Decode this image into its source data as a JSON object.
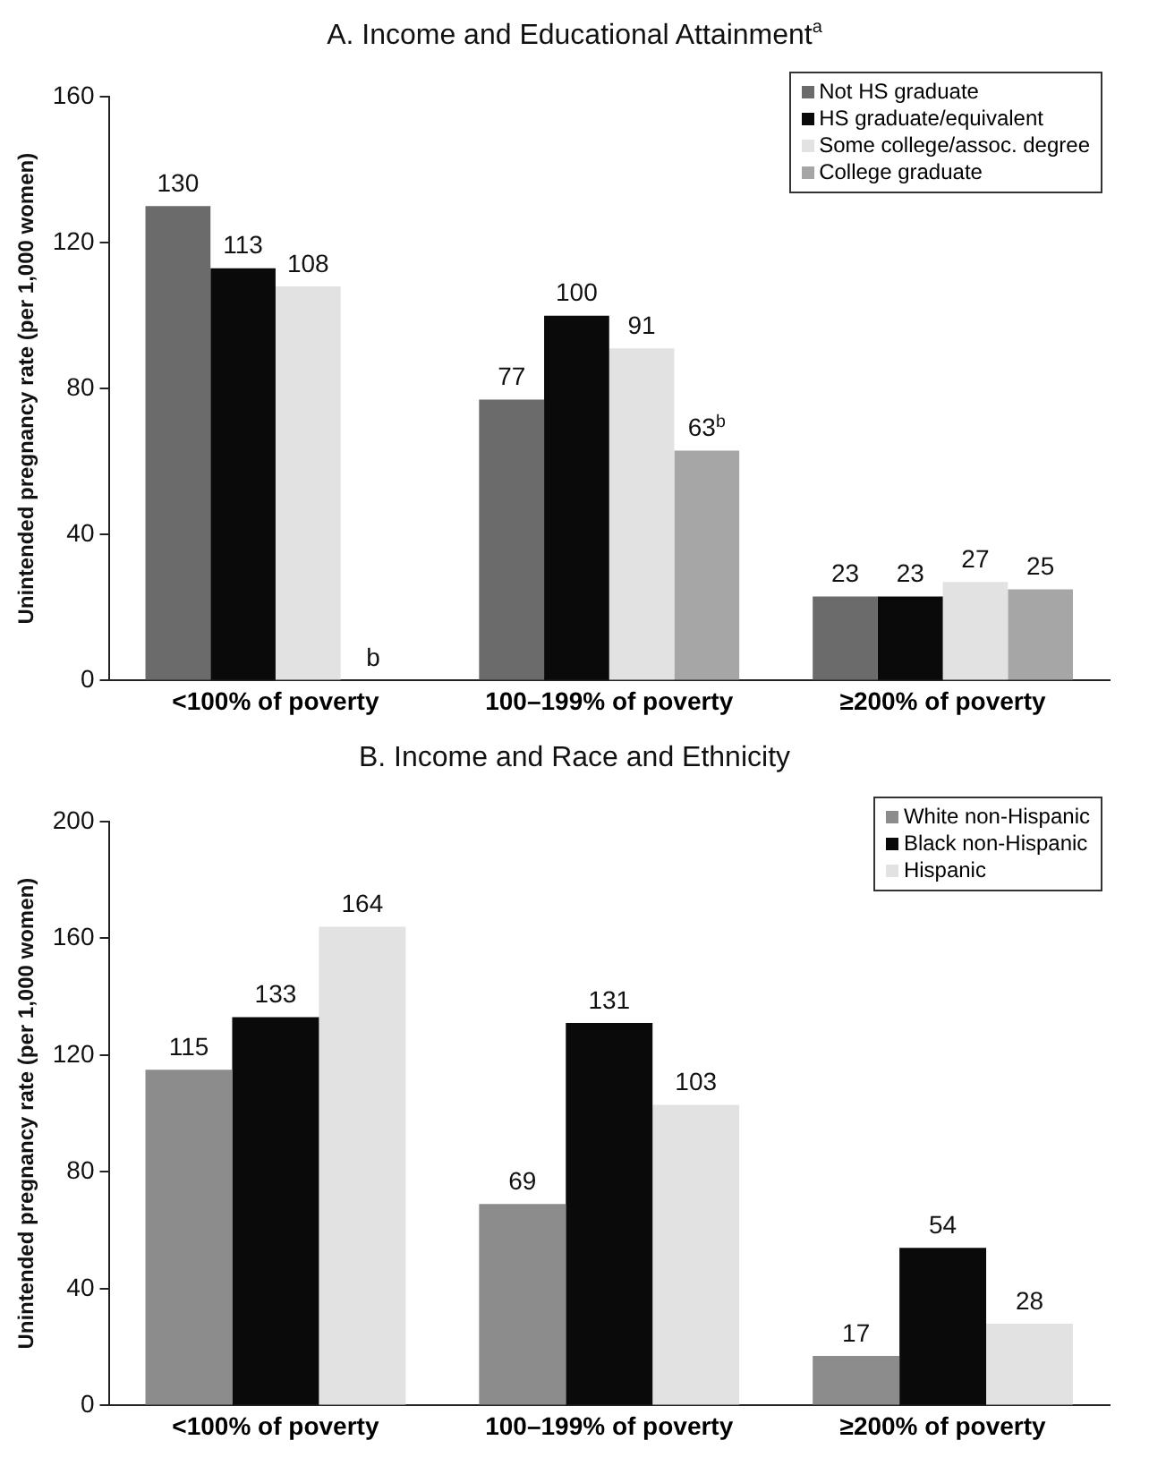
{
  "chart_data": [
    {
      "type": "bar",
      "title": "A. Income and Educational Attainment$^{a}$",
      "ylabel": "Unintended pregnancy rate (per 1,000 women)",
      "categories": [
        "<100% of poverty",
        "100–199% of poverty",
        "≥200% of poverty"
      ],
      "ylim": [
        0,
        160
      ],
      "yticks": [
        0,
        40,
        80,
        120,
        160
      ],
      "grid": false,
      "legend": "top right",
      "series": [
        {
          "name": "Not HS graduate",
          "color": "#6b6b6b",
          "values": [
            130,
            77,
            23
          ],
          "value_labels": [
            "130",
            "77",
            "23"
          ]
        },
        {
          "name": "HS graduate/equivalent",
          "color": "#0a0a0a",
          "values": [
            113,
            100,
            23
          ],
          "value_labels": [
            "113",
            "100",
            "23"
          ]
        },
        {
          "name": "Some college/assoc. degree",
          "color": "#e2e2e2",
          "values": [
            108,
            91,
            27
          ],
          "value_labels": [
            "108",
            "91",
            "27"
          ]
        },
        {
          "name": "College graduate",
          "color": "#a6a6a6",
          "values": [
            null,
            63,
            25
          ],
          "value_labels": [
            "b",
            "63$^{b}$",
            "25"
          ]
        }
      ]
    },
    {
      "type": "bar",
      "title": "B. Income and Race and Ethnicity",
      "ylabel": "Unintended pregnancy rate (per 1,000 women)",
      "categories": [
        "<100% of poverty",
        "100–199% of poverty",
        "≥200% of poverty"
      ],
      "ylim": [
        0,
        200
      ],
      "yticks": [
        0,
        40,
        80,
        120,
        160,
        200
      ],
      "grid": false,
      "legend": "top right",
      "series": [
        {
          "name": "White non-Hispanic",
          "color": "#8c8c8c",
          "values": [
            115,
            69,
            17
          ],
          "value_labels": [
            "115",
            "69",
            "17"
          ]
        },
        {
          "name": "Black non-Hispanic",
          "color": "#0a0a0a",
          "values": [
            133,
            131,
            54
          ],
          "value_labels": [
            "133",
            "131",
            "54"
          ]
        },
        {
          "name": "Hispanic",
          "color": "#e2e2e2",
          "values": [
            164,
            103,
            28
          ],
          "value_labels": [
            "164",
            "103",
            "28"
          ]
        }
      ]
    }
  ]
}
